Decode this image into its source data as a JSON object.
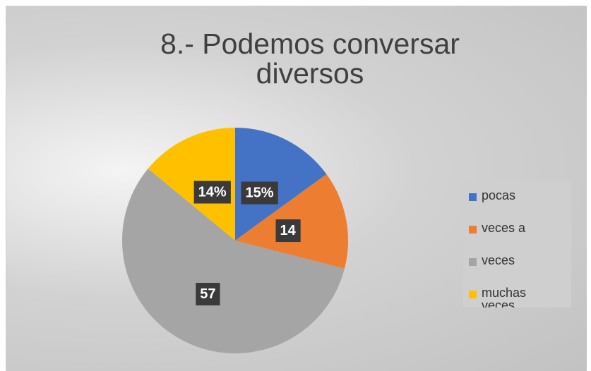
{
  "chart_data": {
    "type": "pie",
    "title": "8.- Podemos conversar diversos",
    "categories": [
      "pocas",
      "veces a",
      "veces",
      "muchas veces"
    ],
    "values": [
      15,
      14,
      57,
      14
    ],
    "value_labels": [
      "15%",
      "14",
      "57",
      "14%"
    ],
    "colors": [
      "#4472c4",
      "#ed7d31",
      "#a5a5a5",
      "#ffc000"
    ],
    "legend": "right"
  }
}
